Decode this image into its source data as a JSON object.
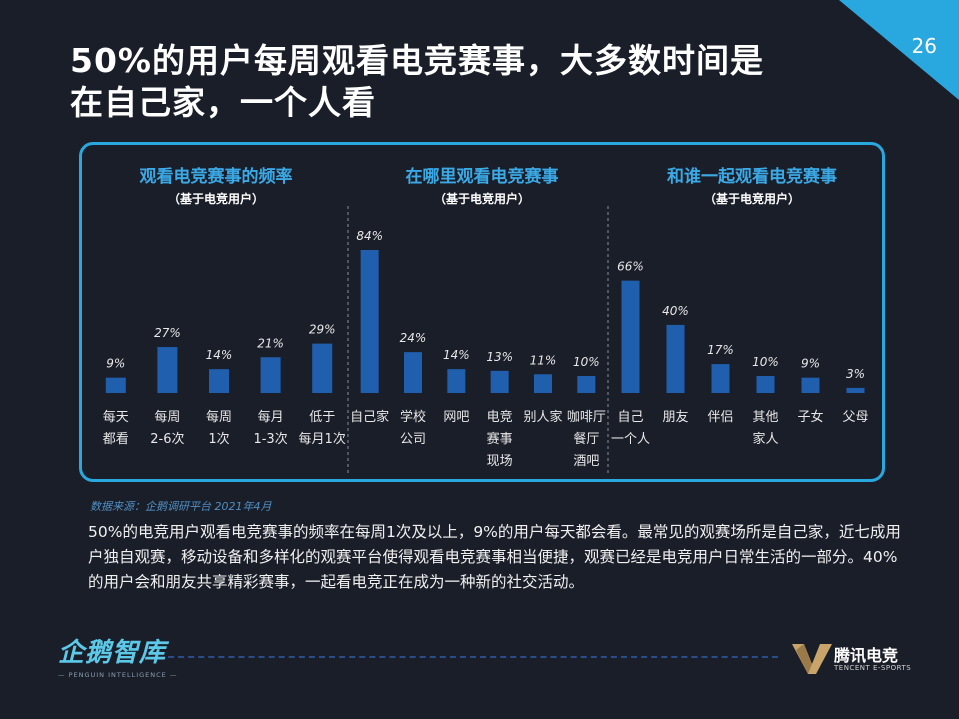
{
  "page_number": "26",
  "title_lines": [
    "50%的用户每周观看电竞赛事，大多数时间是",
    "在自己家，一个人看"
  ],
  "source": "数据来源：企鹅调研平台 2021年4月",
  "summary": "50%的电竞用户观看电竞赛事的频率在每周1次及以上，9%的用户每天都会看。最常见的观赛场所是自己家，近七成用户独自观赛，移动设备和多样化的观赛平台使得观看电竞赛事相当便捷，观赛已经是电竞用户日常生活的一部分。40%的用户会和朋友共享精彩赛事，一起看电竞正在成为一种新的社交活动。",
  "logo_left": {
    "main": "企鹅智库",
    "sub": "— PENGUIN INTELLIGENCE —"
  },
  "logo_right": {
    "main": "腾讯电竞",
    "sub": "TENCENT E-SPORTS"
  },
  "colors": {
    "bar": "#1f5fae",
    "accent": "#29a8e0",
    "chart_title": "#3aa9e6",
    "background": "#1a1e29"
  },
  "chart_data": [
    {
      "type": "bar",
      "title": "观看电竞赛事的频率",
      "subtitle": "（基于电竞用户）",
      "categories": [
        [
          "每天",
          "都看"
        ],
        [
          "每周",
          "2-6次"
        ],
        [
          "每周",
          "1次"
        ],
        [
          "每月",
          "1-3次"
        ],
        [
          "低于",
          "每月1次"
        ]
      ],
      "values": [
        9,
        27,
        14,
        21,
        29
      ],
      "value_labels": [
        "9%",
        "27%",
        "14%",
        "21%",
        "29%"
      ],
      "ylim": [
        0,
        84
      ]
    },
    {
      "type": "bar",
      "title": "在哪里观看电竞赛事",
      "subtitle": "（基于电竞用户）",
      "categories": [
        [
          "自己家"
        ],
        [
          "学校",
          "公司"
        ],
        [
          "网吧"
        ],
        [
          "电竞",
          "赛事",
          "现场"
        ],
        [
          "别人家"
        ],
        [
          "咖啡厅",
          "餐厅",
          "酒吧"
        ]
      ],
      "values": [
        84,
        24,
        14,
        13,
        11,
        10
      ],
      "value_labels": [
        "84%",
        "24%",
        "14%",
        "13%",
        "11%",
        "10%"
      ],
      "ylim": [
        0,
        84
      ]
    },
    {
      "type": "bar",
      "title": "和谁一起观看电竞赛事",
      "subtitle": "（基于电竞用户）",
      "categories": [
        [
          "自己",
          "一个人"
        ],
        [
          "朋友"
        ],
        [
          "伴侣"
        ],
        [
          "其他",
          "家人"
        ],
        [
          "子女"
        ],
        [
          "父母"
        ]
      ],
      "values": [
        66,
        40,
        17,
        10,
        9,
        3
      ],
      "value_labels": [
        "66%",
        "40%",
        "17%",
        "10%",
        "9%",
        "3%"
      ],
      "ylim": [
        0,
        84
      ]
    }
  ]
}
